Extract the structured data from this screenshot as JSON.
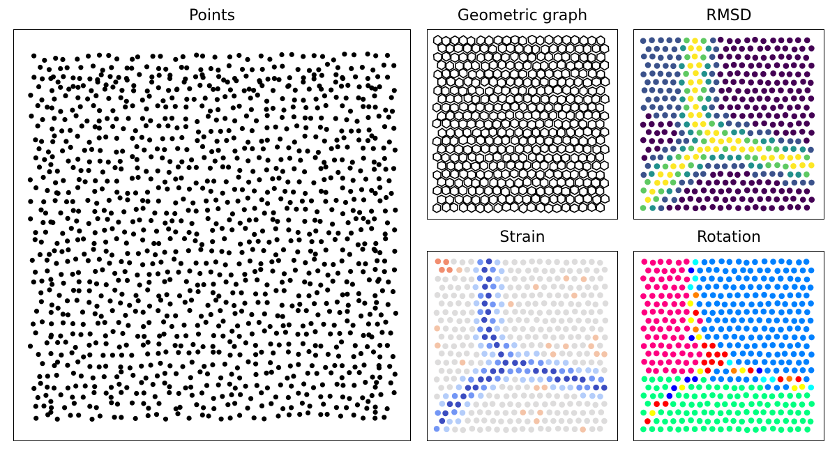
{
  "chart_data": [
    {
      "type": "scatter",
      "title": "Points",
      "xlabel": "",
      "ylabel": "",
      "grid": false,
      "point_color": "#000000",
      "x": [
        0.05,
        0.07,
        0.1,
        0.13,
        0.14,
        0.18,
        0.19,
        0.2,
        0.23,
        0.26,
        0.28,
        0.33,
        0.38,
        0.4,
        0.42,
        0.47,
        0.49,
        0.54,
        0.56,
        0.6,
        0.63,
        0.67,
        0.71,
        0.75,
        0.78,
        0.8,
        0.84,
        0.86,
        0.93,
        0.95,
        0.04,
        0.06,
        0.05,
        0.07,
        0.05,
        0.06,
        0.05,
        0.07,
        0.05,
        0.06,
        0.04,
        0.05,
        0.05,
        0.95,
        0.94,
        0.96,
        0.95,
        0.93,
        0.95,
        0.96,
        0.95,
        0.94,
        0.96,
        0.95,
        0.93,
        0.95
      ],
      "y": [
        0.96,
        0.95,
        0.93,
        0.96,
        0.94,
        0.95,
        0.97,
        0.93,
        0.95,
        0.96,
        0.94,
        0.95,
        0.96,
        0.93,
        0.95,
        0.97,
        0.94,
        0.95,
        0.96,
        0.93,
        0.95,
        0.96,
        0.94,
        0.95,
        0.97,
        0.93,
        0.95,
        0.96,
        0.94,
        0.93,
        0.88,
        0.8,
        0.72,
        0.64,
        0.56,
        0.48,
        0.4,
        0.32,
        0.24,
        0.16,
        0.1,
        0.06,
        0.03,
        0.88,
        0.8,
        0.72,
        0.64,
        0.56,
        0.48,
        0.4,
        0.32,
        0.24,
        0.16,
        0.1,
        0.06,
        0.03
      ],
      "note_of_density": ""
    },
    {
      "type": "diagram",
      "title": "Geometric graph",
      "edge_color": "#000000",
      "cell_shape": "hexagon",
      "columns": 20,
      "rows": 21
    },
    {
      "type": "scatter",
      "title": "RMSD",
      "colormap": [
        "#440154",
        "#3b528b",
        "#21918c",
        "#5ec962",
        "#fde725"
      ],
      "columns": 20,
      "rows": 21
    },
    {
      "type": "scatter",
      "title": "Strain",
      "colormap": [
        "#3b4cc0",
        "#7396f5",
        "#b4cdfa",
        "#dddcdc",
        "#f4c4a8",
        "#f18d6f"
      ],
      "columns": 20,
      "rows": 21
    },
    {
      "type": "scatter",
      "title": "Rotation",
      "colormap": [
        "#0080ff",
        "#00ff80",
        "#ff0080",
        "#ff0000",
        "#00ffff",
        "#0000ff",
        "#ffff00",
        "#ff8000",
        "#8000ff"
      ],
      "columns": 20,
      "rows": 21
    }
  ]
}
